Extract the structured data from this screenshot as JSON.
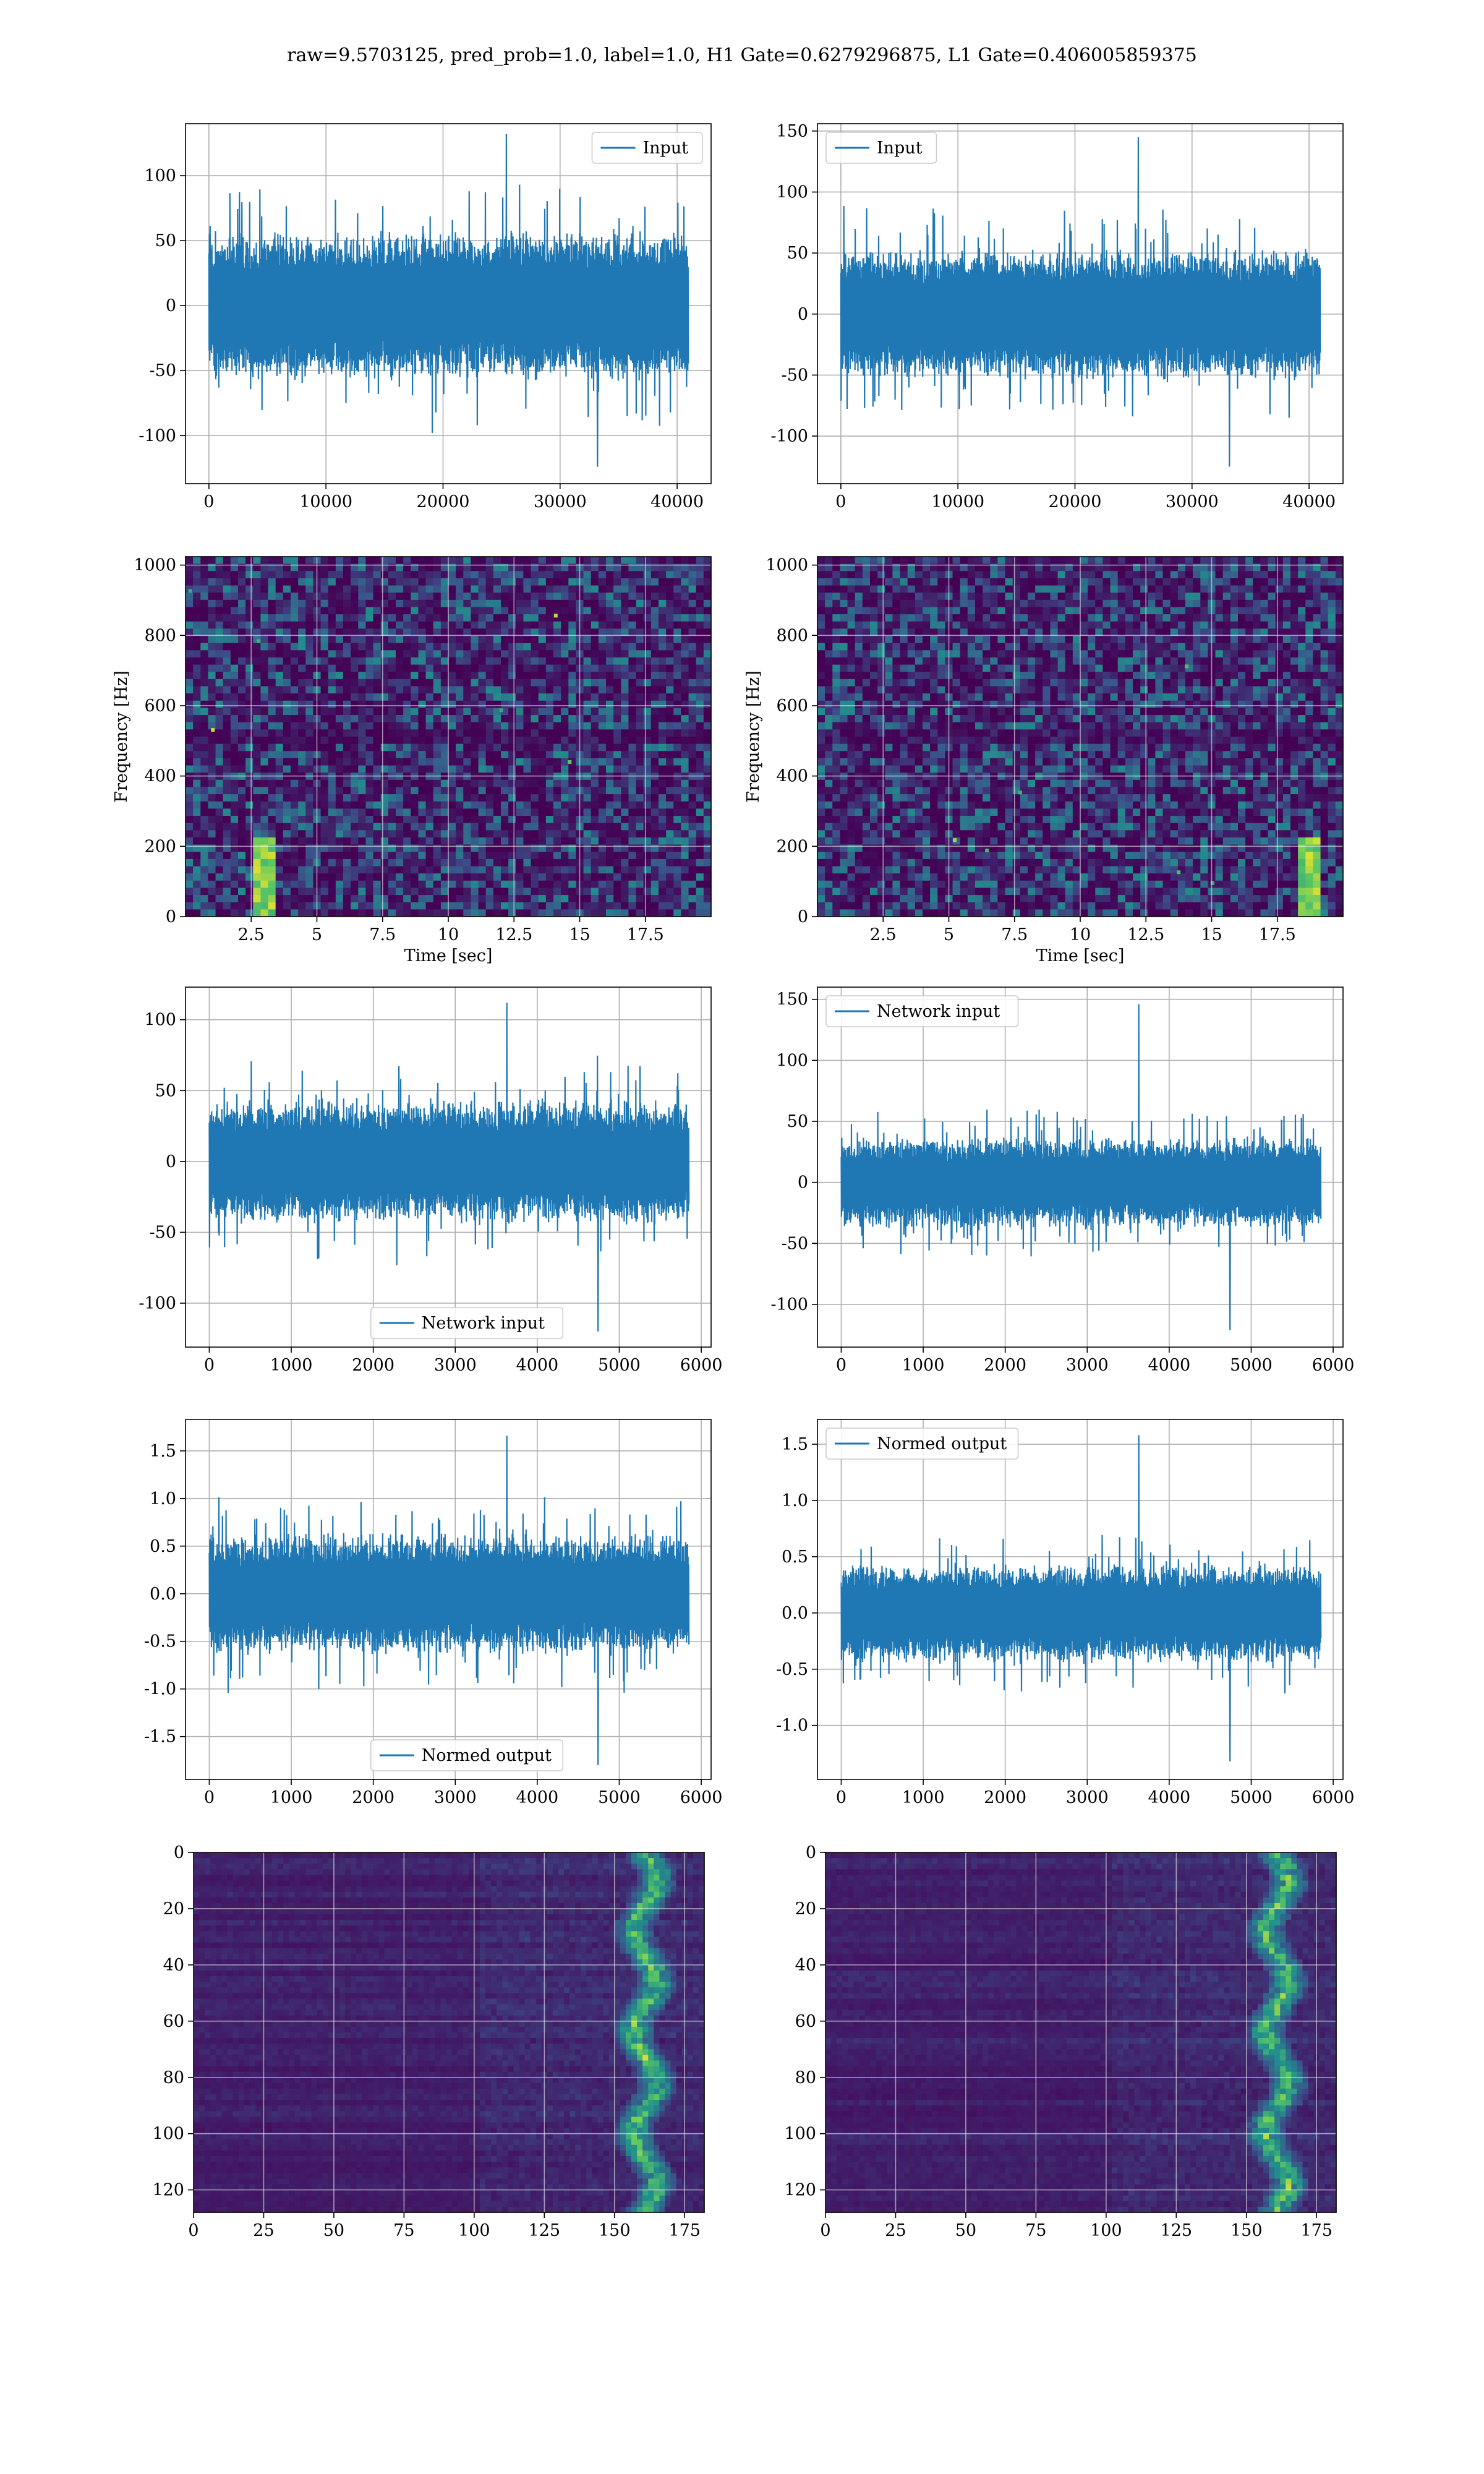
{
  "figure": {
    "title": "raw=9.5703125, pred_prob=1.0, label=1.0, H1 Gate=0.6279296875, L1 Gate=0.406005859375",
    "signal_color": "#1f77b4",
    "colormap": "viridis"
  },
  "chart_data": [
    {
      "name": "row1-left",
      "type": "line",
      "legend": "Input",
      "legend_loc": "upper right",
      "xlim": [
        -2000,
        42900
      ],
      "ylim": [
        -137,
        140
      ],
      "xticks": [
        0,
        10000,
        20000,
        30000,
        40000
      ],
      "yticks": [
        -100,
        -50,
        0,
        50,
        100
      ],
      "x_range": [
        0,
        40960
      ],
      "envelope": {
        "typical": 60,
        "max": 132,
        "min": -124
      },
      "grid": true
    },
    {
      "name": "row1-right",
      "type": "line",
      "legend": "Input",
      "legend_loc": "upper left",
      "xlim": [
        -2000,
        42900
      ],
      "ylim": [
        -139,
        156
      ],
      "xticks": [
        0,
        10000,
        20000,
        30000,
        40000
      ],
      "yticks": [
        -100,
        -50,
        0,
        50,
        100,
        150
      ],
      "x_range": [
        0,
        40960
      ],
      "envelope": {
        "typical": 55,
        "max": 145,
        "min": -125
      },
      "grid": true
    },
    {
      "name": "row2-left",
      "type": "heatmap",
      "title": "",
      "xlabel": "Time [sec]",
      "ylabel": "Frequency [Hz]",
      "xlim": [
        0.0,
        20.0
      ],
      "ylim": [
        0,
        1024
      ],
      "xticks": [
        2.5,
        5.0,
        7.5,
        10.0,
        12.5,
        15.0,
        17.5
      ],
      "yticks": [
        0,
        200,
        400,
        600,
        800,
        1000
      ],
      "grid": true
    },
    {
      "name": "row2-right",
      "type": "heatmap",
      "xlabel": "Time [sec]",
      "ylabel": "Frequency [Hz]",
      "xlim": [
        0.0,
        20.0
      ],
      "ylim": [
        0,
        1024
      ],
      "xticks": [
        2.5,
        5.0,
        7.5,
        10.0,
        12.5,
        15.0,
        17.5
      ],
      "yticks": [
        0,
        200,
        400,
        600,
        800,
        1000
      ],
      "grid": true
    },
    {
      "name": "row3-left",
      "type": "line",
      "legend": "Network input",
      "legend_loc": "lower center",
      "xlim": [
        -290,
        6120
      ],
      "ylim": [
        -131,
        123
      ],
      "xticks": [
        0,
        1000,
        2000,
        3000,
        4000,
        5000,
        6000
      ],
      "yticks": [
        -100,
        -50,
        0,
        50,
        100
      ],
      "x_range": [
        0,
        5850
      ],
      "envelope": {
        "typical": 45,
        "max": 112,
        "min": -120
      },
      "grid": true
    },
    {
      "name": "row3-right",
      "type": "line",
      "legend": "Network input",
      "legend_loc": "upper left",
      "xlim": [
        -290,
        6120
      ],
      "ylim": [
        -135,
        160
      ],
      "xticks": [
        0,
        1000,
        2000,
        3000,
        4000,
        5000,
        6000
      ],
      "yticks": [
        -100,
        -50,
        0,
        50,
        100,
        150
      ],
      "x_range": [
        0,
        5850
      ],
      "envelope": {
        "typical": 38,
        "max": 146,
        "min": -121
      },
      "grid": true
    },
    {
      "name": "row4-left",
      "type": "line",
      "legend": "Normed output",
      "legend_loc": "lower center",
      "xlim": [
        -290,
        6120
      ],
      "ylim": [
        -1.95,
        1.83
      ],
      "xticks": [
        0,
        1000,
        2000,
        3000,
        4000,
        5000,
        6000
      ],
      "yticks": [
        -1.5,
        -1.0,
        -0.5,
        0.0,
        0.5,
        1.0,
        1.5
      ],
      "tick_format": 1,
      "x_range": [
        0,
        5850
      ],
      "envelope": {
        "typical": 0.65,
        "max": 1.66,
        "min": -1.8
      },
      "grid": true
    },
    {
      "name": "row4-right",
      "type": "line",
      "legend": "Normed output",
      "legend_loc": "upper left",
      "xlim": [
        -290,
        6120
      ],
      "ylim": [
        -1.48,
        1.72
      ],
      "xticks": [
        0,
        1000,
        2000,
        3000,
        4000,
        5000,
        6000
      ],
      "yticks": [
        -1.0,
        -0.5,
        0.0,
        0.5,
        1.0,
        1.5
      ],
      "tick_format": 1,
      "x_range": [
        0,
        5850
      ],
      "envelope": {
        "typical": 0.45,
        "max": 1.58,
        "min": -1.32
      },
      "grid": true
    },
    {
      "name": "row5-left",
      "type": "heatmap",
      "inverted_y": true,
      "xlim": [
        0,
        182
      ],
      "ylim": [
        128,
        0
      ],
      "xticks": [
        0,
        25,
        50,
        75,
        100,
        125,
        150,
        175
      ],
      "yticks": [
        0,
        20,
        40,
        60,
        80,
        100,
        120
      ],
      "ridge_x": 160,
      "grid": true
    },
    {
      "name": "row5-right",
      "type": "heatmap",
      "inverted_y": true,
      "xlim": [
        0,
        182
      ],
      "ylim": [
        128,
        0
      ],
      "xticks": [
        0,
        25,
        50,
        75,
        100,
        125,
        150,
        175
      ],
      "yticks": [
        0,
        20,
        40,
        60,
        80,
        100,
        120
      ],
      "ridge_x": 160,
      "grid": true
    }
  ]
}
